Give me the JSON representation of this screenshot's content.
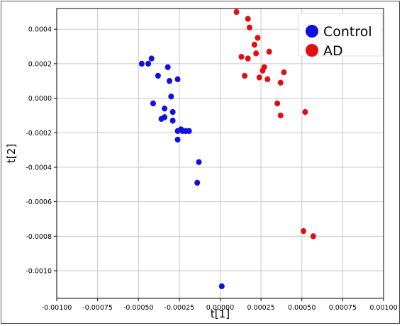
{
  "chart_data": {
    "type": "scatter",
    "title": "",
    "xlabel": "t[1]",
    "ylabel": "t[2]",
    "xlim": [
      -0.001,
      0.001
    ],
    "ylim": [
      -0.00116,
      0.00052
    ],
    "grid": true,
    "legend_position": "top-right",
    "x_ticks": [
      -0.001,
      -0.00075,
      -0.0005,
      -0.00025,
      0.0,
      0.00025,
      0.0005,
      0.00075,
      0.001
    ],
    "x_tick_labels": [
      "-0.00100",
      "-0.00075",
      "-0.00050",
      "-0.00025",
      "0.00000",
      "0.00025",
      "0.00050",
      "0.00075",
      "0.00100"
    ],
    "y_ticks": [
      0.0004,
      0.0002,
      0.0,
      -0.0002,
      -0.0004,
      -0.0006,
      -0.0008,
      -0.001
    ],
    "y_tick_labels": [
      "0.0004",
      "0.0002",
      "0.0000",
      "-0.0002",
      "-0.0004",
      "-0.0006",
      "-0.0008",
      "-0.0010"
    ],
    "series": [
      {
        "name": "Control",
        "color": "#1010e0",
        "points": [
          [
            -0.00048,
            0.0002
          ],
          [
            -0.00044,
            0.0002
          ],
          [
            -0.00042,
            0.00023
          ],
          [
            -0.00038,
            0.00013
          ],
          [
            -0.00032,
            0.00018
          ],
          [
            -0.00031,
            0.0001
          ],
          [
            -0.00026,
            0.00011
          ],
          [
            -0.0003,
            1e-05
          ],
          [
            -0.00041,
            -3e-05
          ],
          [
            -0.00034,
            -6e-05
          ],
          [
            -0.00029,
            -8e-05
          ],
          [
            -0.00034,
            -0.00011
          ],
          [
            -0.00036,
            -0.00012
          ],
          [
            -0.00029,
            -0.00013
          ],
          [
            -0.00026,
            -0.00019
          ],
          [
            -0.00024,
            -0.00018
          ],
          [
            -0.00023,
            -0.00019
          ],
          [
            -0.00021,
            -0.00019
          ],
          [
            -0.00019,
            -0.00019
          ],
          [
            -0.00026,
            -0.00024
          ],
          [
            -0.00013,
            -0.00037
          ],
          [
            -0.00014,
            -0.00049
          ],
          [
            1e-05,
            -0.00109
          ]
        ]
      },
      {
        "name": "AD",
        "color": "#e01010",
        "points": [
          [
            0.0001,
            0.0005
          ],
          [
            0.00017,
            0.00046
          ],
          [
            0.00018,
            0.00041
          ],
          [
            0.00023,
            0.00035
          ],
          [
            0.00021,
            0.00031
          ],
          [
            0.0003,
            0.00027
          ],
          [
            0.00022,
            0.00026
          ],
          [
            0.00013,
            0.00024
          ],
          [
            0.00017,
            0.00023
          ],
          [
            0.00027,
            0.00018
          ],
          [
            0.00026,
            0.00016
          ],
          [
            0.00039,
            0.00015
          ],
          [
            0.00015,
            0.00013
          ],
          [
            0.00024,
            0.00012
          ],
          [
            0.00029,
            0.00011
          ],
          [
            0.00037,
            9e-05
          ],
          [
            0.00035,
            -3e-05
          ],
          [
            0.00052,
            -8e-05
          ],
          [
            0.00037,
            -0.0001
          ],
          [
            0.00051,
            -0.00077
          ],
          [
            0.00057,
            -0.0008
          ]
        ]
      }
    ]
  }
}
